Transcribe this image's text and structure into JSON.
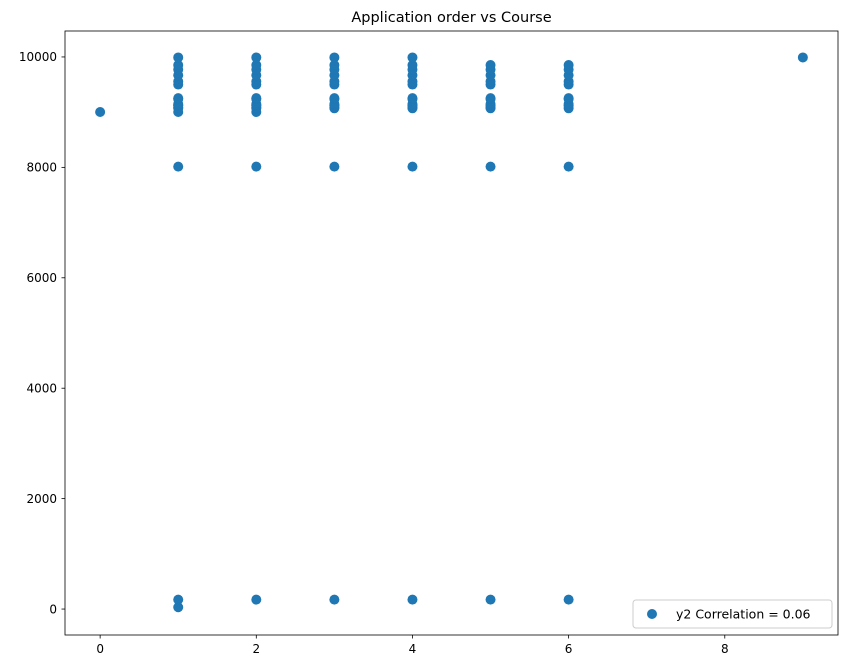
{
  "chart_data": {
    "type": "scatter",
    "title": "Application order vs Course",
    "xlabel": "",
    "ylabel": "",
    "xlim": [
      -0.45,
      9.45
    ],
    "ylim": [
      -470,
      10470
    ],
    "xticks": [
      0,
      2,
      4,
      6,
      8
    ],
    "yticks": [
      0,
      2000,
      4000,
      6000,
      8000,
      10000
    ],
    "legend": {
      "placement": "lower right",
      "entries": [
        "y2 Correlation = 0.06"
      ]
    },
    "grid": false,
    "marker_color": "#1f77b4",
    "series": [
      {
        "name": "y2 Correlation = 0.06",
        "points": [
          [
            0,
            9003
          ],
          [
            1,
            33
          ],
          [
            1,
            171
          ],
          [
            1,
            9003
          ],
          [
            1,
            9070
          ],
          [
            1,
            9085
          ],
          [
            1,
            9119
          ],
          [
            1,
            9130
          ],
          [
            1,
            9147
          ],
          [
            1,
            9238
          ],
          [
            1,
            9254
          ],
          [
            1,
            9500
          ],
          [
            1,
            9556
          ],
          [
            1,
            9670
          ],
          [
            1,
            9773
          ],
          [
            1,
            9853
          ],
          [
            1,
            9991
          ],
          [
            1,
            8014
          ],
          [
            2,
            171
          ],
          [
            2,
            8014
          ],
          [
            2,
            9003
          ],
          [
            2,
            9070
          ],
          [
            2,
            9085
          ],
          [
            2,
            9119
          ],
          [
            2,
            9130
          ],
          [
            2,
            9147
          ],
          [
            2,
            9238
          ],
          [
            2,
            9254
          ],
          [
            2,
            9500
          ],
          [
            2,
            9556
          ],
          [
            2,
            9670
          ],
          [
            2,
            9773
          ],
          [
            2,
            9853
          ],
          [
            2,
            9991
          ],
          [
            3,
            171
          ],
          [
            3,
            8014
          ],
          [
            3,
            9070
          ],
          [
            3,
            9085
          ],
          [
            3,
            9119
          ],
          [
            3,
            9130
          ],
          [
            3,
            9147
          ],
          [
            3,
            9238
          ],
          [
            3,
            9254
          ],
          [
            3,
            9500
          ],
          [
            3,
            9556
          ],
          [
            3,
            9670
          ],
          [
            3,
            9773
          ],
          [
            3,
            9853
          ],
          [
            3,
            9991
          ],
          [
            4,
            171
          ],
          [
            4,
            8014
          ],
          [
            4,
            9070
          ],
          [
            4,
            9085
          ],
          [
            4,
            9119
          ],
          [
            4,
            9130
          ],
          [
            4,
            9147
          ],
          [
            4,
            9238
          ],
          [
            4,
            9254
          ],
          [
            4,
            9500
          ],
          [
            4,
            9556
          ],
          [
            4,
            9670
          ],
          [
            4,
            9773
          ],
          [
            4,
            9853
          ],
          [
            4,
            9991
          ],
          [
            5,
            171
          ],
          [
            5,
            8014
          ],
          [
            5,
            9070
          ],
          [
            5,
            9085
          ],
          [
            5,
            9119
          ],
          [
            5,
            9147
          ],
          [
            5,
            9238
          ],
          [
            5,
            9254
          ],
          [
            5,
            9500
          ],
          [
            5,
            9556
          ],
          [
            5,
            9670
          ],
          [
            5,
            9773
          ],
          [
            5,
            9853
          ],
          [
            6,
            171
          ],
          [
            6,
            8014
          ],
          [
            6,
            9070
          ],
          [
            6,
            9119
          ],
          [
            6,
            9147
          ],
          [
            6,
            9238
          ],
          [
            6,
            9254
          ],
          [
            6,
            9500
          ],
          [
            6,
            9556
          ],
          [
            6,
            9670
          ],
          [
            6,
            9773
          ],
          [
            6,
            9853
          ],
          [
            9,
            9991
          ]
        ]
      }
    ]
  }
}
